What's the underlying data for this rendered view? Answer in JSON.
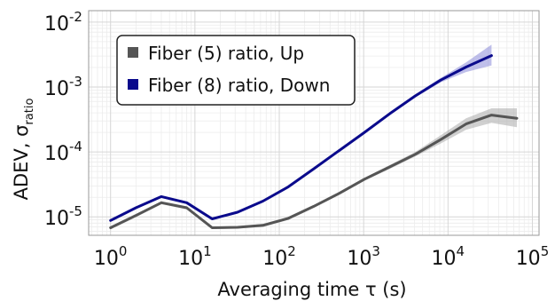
{
  "chart_data": {
    "type": "line",
    "title": "",
    "xlabel": "Averaging time τ (s)",
    "ylabel_main": "ADEV, σ",
    "ylabel_sub": "ratio",
    "xscale": "log",
    "yscale": "log",
    "xlim": [
      0.55,
      120000
    ],
    "ylim": [
      5.2e-06,
      0.015
    ],
    "x_ticks": [
      {
        "value": 1,
        "base": "10",
        "exp": "0"
      },
      {
        "value": 10,
        "base": "10",
        "exp": "1"
      },
      {
        "value": 100,
        "base": "10",
        "exp": "2"
      },
      {
        "value": 1000,
        "base": "10",
        "exp": "3"
      },
      {
        "value": 10000,
        "base": "10",
        "exp": "4"
      },
      {
        "value": 100000,
        "base": "10",
        "exp": "5"
      }
    ],
    "y_ticks": [
      {
        "value": 1e-05,
        "base": "10",
        "exp": "-5"
      },
      {
        "value": 0.0001,
        "base": "10",
        "exp": "-4"
      },
      {
        "value": 0.001,
        "base": "10",
        "exp": "-3"
      },
      {
        "value": 0.01,
        "base": "10",
        "exp": "-2"
      }
    ],
    "grid": true,
    "legend_position": "top-left",
    "series": [
      {
        "name": "Fiber (5) ratio, Up",
        "color": "#555555",
        "band_color": "#aaaaaa",
        "x": [
          1,
          2,
          4,
          8,
          16,
          32,
          64,
          128,
          256,
          512,
          1024,
          2048,
          4096,
          8192,
          16384,
          32768,
          65536
        ],
        "y": [
          6.8e-06,
          1.05e-05,
          1.65e-05,
          1.38e-05,
          6.8e-06,
          6.9e-06,
          7.4e-06,
          9.5e-06,
          1.45e-05,
          2.3e-05,
          3.8e-05,
          5.9e-05,
          9.2e-05,
          0.000155,
          0.00027,
          0.00037,
          0.00033
        ],
        "upper": [
          7.2e-06,
          1.11e-05,
          1.74e-05,
          1.45e-05,
          7.1e-06,
          7.2e-06,
          7.8e-06,
          1e-05,
          1.52e-05,
          2.42e-05,
          4e-05,
          6.3e-05,
          0.0001,
          0.00018,
          0.00033,
          0.00047,
          0.00047
        ],
        "lower": [
          6.4e-06,
          9.9e-06,
          1.57e-05,
          1.31e-05,
          6.5e-06,
          6.6e-06,
          7e-06,
          9e-06,
          1.38e-05,
          2.18e-05,
          3.6e-05,
          5.5e-05,
          8.5e-05,
          0.000135,
          0.00022,
          0.00028,
          0.00024
        ]
      },
      {
        "name": "Fiber (8) ratio, Down",
        "color": "#0a0a8c",
        "band_color": "#8a8ad8",
        "x": [
          1,
          2,
          4,
          8,
          16,
          32,
          64,
          128,
          256,
          512,
          1024,
          2048,
          4096,
          8192,
          16384,
          32768
        ],
        "y": [
          8.8e-06,
          1.38e-05,
          2.05e-05,
          1.65e-05,
          9.3e-06,
          1.18e-05,
          1.75e-05,
          2.9e-05,
          5.5e-05,
          0.000105,
          0.0002,
          0.00039,
          0.00073,
          0.00128,
          0.00203,
          0.00305
        ],
        "upper": [
          9.2e-06,
          1.44e-05,
          2.14e-05,
          1.72e-05,
          9.7e-06,
          1.23e-05,
          1.82e-05,
          3.02e-05,
          5.7e-05,
          0.000109,
          0.000209,
          0.000408,
          0.00077,
          0.00138,
          0.0024,
          0.0045
        ],
        "lower": [
          8.4e-06,
          1.32e-05,
          1.96e-05,
          1.58e-05,
          8.9e-06,
          1.13e-05,
          1.68e-05,
          2.78e-05,
          5.3e-05,
          0.000101,
          0.000191,
          0.000372,
          0.00069,
          0.00118,
          0.0017,
          0.00215
        ]
      }
    ]
  },
  "style": {
    "axis_color": "#999999",
    "grid_major_color": "#d6d6d6",
    "grid_minor_color": "#ececec",
    "legend_border_color": "#222222"
  }
}
